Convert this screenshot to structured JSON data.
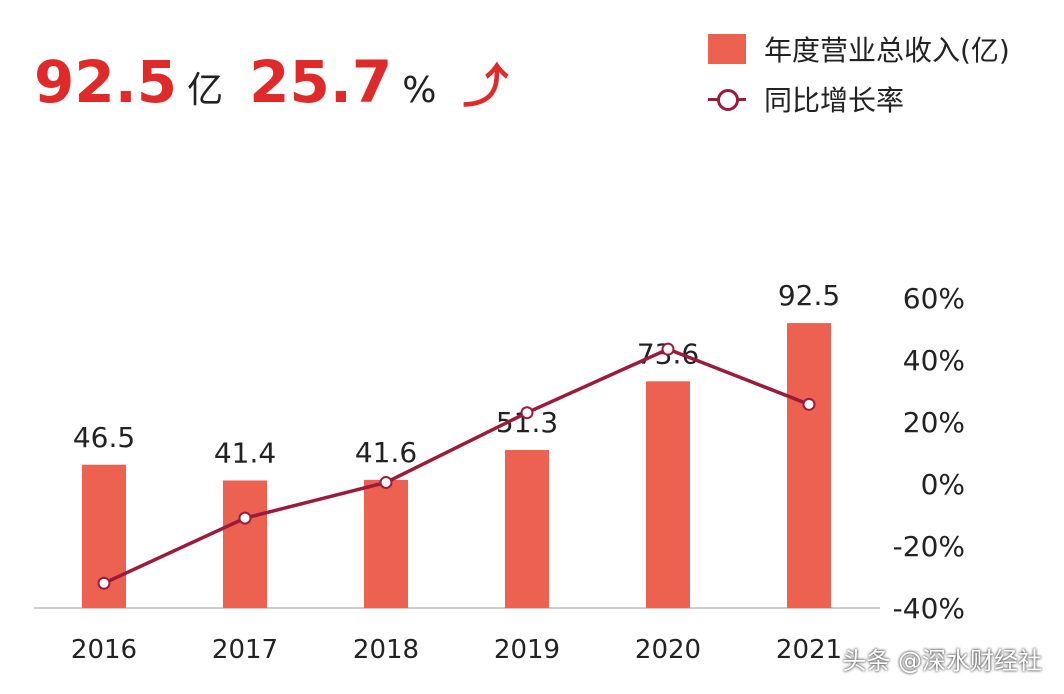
{
  "headline": {
    "revenue": "92.5",
    "revenue_unit": "亿",
    "growth": "25.7",
    "growth_unit": "%",
    "arrow": "⤴"
  },
  "watermark": "头条 @深水财经社",
  "chart_data": {
    "type": "bar+line",
    "categories": [
      "2016",
      "2017",
      "2018",
      "2019",
      "2020",
      "2021"
    ],
    "series": [
      {
        "name": "年度营业总收入(亿)",
        "type": "bar",
        "axis": "left",
        "values": [
          46.5,
          41.4,
          41.6,
          51.3,
          73.6,
          92.5
        ],
        "color": "#ec6150"
      },
      {
        "name": "同比增长率",
        "type": "line",
        "axis": "right",
        "values": [
          -32,
          -11,
          0.5,
          23,
          43.5,
          25.7
        ],
        "color": "#9b1b3a"
      }
    ],
    "data_labels": [
      "46.5",
      "41.4",
      "41.6",
      "51.3",
      "73.6",
      "92.5"
    ],
    "right_axis": {
      "ticks": [
        "60%",
        "40%",
        "20%",
        "0%",
        "-20%",
        "-40%"
      ],
      "tick_values": [
        60,
        40,
        20,
        0,
        -20,
        -40
      ],
      "range": [
        -40,
        60
      ]
    },
    "bar_range": [
      0,
      92.5
    ],
    "grid": false,
    "legend": "top-right"
  }
}
